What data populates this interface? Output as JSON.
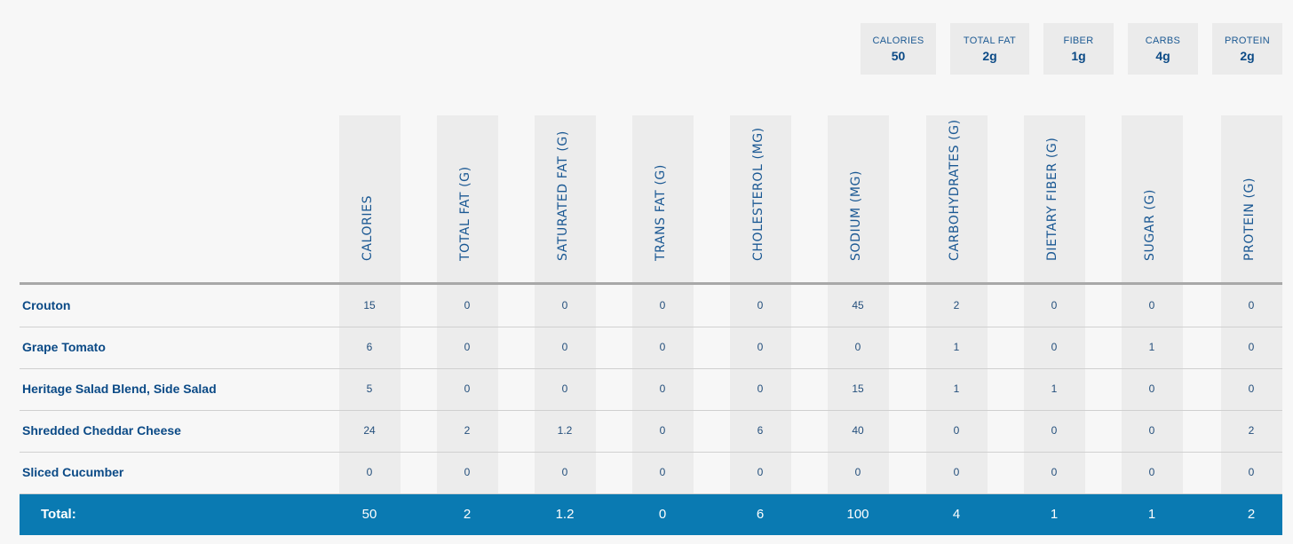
{
  "summary": [
    {
      "label": "CALORIES",
      "value": "50"
    },
    {
      "label": "TOTAL FAT",
      "value": "2g"
    },
    {
      "label": "FIBER",
      "value": "1g"
    },
    {
      "label": "CARBS",
      "value": "4g"
    },
    {
      "label": "PROTEIN",
      "value": "2g"
    }
  ],
  "columns": [
    "CALORIES",
    "TOTAL FAT (G)",
    "SATURATED FAT (G)",
    "TRANS FAT (G)",
    "CHOLESTEROL (MG)",
    "SODIUM (MG)",
    "CARBOHYDRATES (G)",
    "DIETARY FIBER (G)",
    "SUGAR (G)",
    "PROTEIN (G)"
  ],
  "rows": [
    {
      "name": "Crouton",
      "values": [
        "15",
        "0",
        "0",
        "0",
        "0",
        "45",
        "2",
        "0",
        "0",
        "0"
      ]
    },
    {
      "name": "Grape Tomato",
      "values": [
        "6",
        "0",
        "0",
        "0",
        "0",
        "0",
        "1",
        "0",
        "1",
        "0"
      ]
    },
    {
      "name": "Heritage Salad Blend, Side Salad",
      "values": [
        "5",
        "0",
        "0",
        "0",
        "0",
        "15",
        "1",
        "1",
        "0",
        "0"
      ]
    },
    {
      "name": "Shredded Cheddar Cheese",
      "values": [
        "24",
        "2",
        "1.2",
        "0",
        "6",
        "40",
        "0",
        "0",
        "0",
        "2"
      ]
    },
    {
      "name": "Sliced Cucumber",
      "values": [
        "0",
        "0",
        "0",
        "0",
        "0",
        "0",
        "0",
        "0",
        "0",
        "0"
      ]
    }
  ],
  "total": {
    "label": "Total:",
    "values": [
      "50",
      "2",
      "1.2",
      "0",
      "6",
      "100",
      "4",
      "1",
      "1",
      "2"
    ]
  },
  "colors": {
    "text_primary": "#0b4a86",
    "total_bar": "#0a7ab2",
    "column_band": "#ececec",
    "background": "#f7f7f7"
  }
}
